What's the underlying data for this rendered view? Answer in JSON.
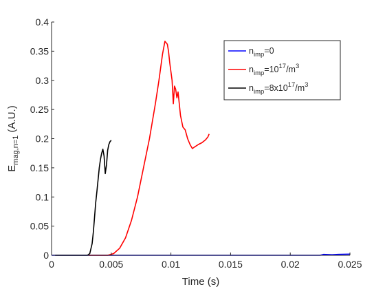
{
  "chart_data": {
    "type": "line",
    "xlabel": "Time (s)",
    "ylabel": {
      "base": "E",
      "sub": "mag,n=1",
      "suffix": " (A.U.)"
    },
    "xlim": [
      0,
      0.025
    ],
    "ylim": [
      0,
      0.4
    ],
    "xticks": [
      0,
      0.005,
      0.01,
      0.015,
      0.02,
      0.025
    ],
    "xtick_labels": [
      "0",
      "0.005",
      "0.01",
      "0.015",
      "0.02",
      "0.025"
    ],
    "yticks": [
      0,
      0.05,
      0.1,
      0.15,
      0.2,
      0.25,
      0.3,
      0.35,
      0.4
    ],
    "ytick_labels": [
      "0",
      "0.05",
      "0.1",
      "0.15",
      "0.2",
      "0.25",
      "0.3",
      "0.35",
      "0.4"
    ],
    "grid": false,
    "legend_position": "top-right",
    "series": [
      {
        "name": "n_imp=0",
        "legend": {
          "base": "n",
          "sub": "imp",
          "rest": "=0"
        },
        "color": "#0000ff",
        "points": [
          [
            0.0,
            0.0
          ],
          [
            0.005,
            0.0
          ],
          [
            0.01,
            0.0
          ],
          [
            0.015,
            0.0
          ],
          [
            0.02,
            0.0
          ],
          [
            0.0225,
            0.0
          ],
          [
            0.0228,
            0.0015
          ],
          [
            0.0235,
            0.001
          ],
          [
            0.024,
            0.0015
          ],
          [
            0.025,
            0.002
          ]
        ]
      },
      {
        "name": "n_imp=10^17/m^3",
        "legend": {
          "base": "n",
          "sub": "imp",
          "mid": "=10",
          "sup1": "17",
          "mid2": "/m",
          "sup2": "3"
        },
        "color": "#ff0000",
        "points": [
          [
            0.0031,
            0.0
          ],
          [
            0.0047,
            0.0
          ],
          [
            0.0052,
            0.003
          ],
          [
            0.0057,
            0.012
          ],
          [
            0.0062,
            0.03
          ],
          [
            0.0067,
            0.06
          ],
          [
            0.0072,
            0.1
          ],
          [
            0.0077,
            0.15
          ],
          [
            0.0082,
            0.2
          ],
          [
            0.0087,
            0.26
          ],
          [
            0.009,
            0.3
          ],
          [
            0.0093,
            0.345
          ],
          [
            0.0095,
            0.367
          ],
          [
            0.0097,
            0.362
          ],
          [
            0.0098,
            0.35
          ],
          [
            0.0099,
            0.33
          ],
          [
            0.0101,
            0.3
          ],
          [
            0.0102,
            0.26
          ],
          [
            0.0103,
            0.29
          ],
          [
            0.0104,
            0.285
          ],
          [
            0.0105,
            0.27
          ],
          [
            0.0106,
            0.28
          ],
          [
            0.0108,
            0.24
          ],
          [
            0.011,
            0.22
          ],
          [
            0.0112,
            0.215
          ],
          [
            0.0114,
            0.2
          ],
          [
            0.0116,
            0.19
          ],
          [
            0.0118,
            0.183
          ],
          [
            0.012,
            0.186
          ],
          [
            0.0123,
            0.19
          ],
          [
            0.0126,
            0.193
          ],
          [
            0.0129,
            0.198
          ],
          [
            0.0131,
            0.203
          ],
          [
            0.0132,
            0.208
          ]
        ]
      },
      {
        "name": "n_imp=8x10^17/m^3",
        "legend": {
          "base": "n",
          "sub": "imp",
          "mid": "=8x10",
          "sup1": "17",
          "mid2": "/m",
          "sup2": "3"
        },
        "color": "#000000",
        "points": [
          [
            0.0003,
            0.0
          ],
          [
            0.003,
            0.0
          ],
          [
            0.0032,
            0.003
          ],
          [
            0.0034,
            0.02
          ],
          [
            0.0035,
            0.04
          ],
          [
            0.0036,
            0.065
          ],
          [
            0.0037,
            0.09
          ],
          [
            0.0038,
            0.11
          ],
          [
            0.0039,
            0.13
          ],
          [
            0.004,
            0.15
          ],
          [
            0.0041,
            0.165
          ],
          [
            0.0042,
            0.175
          ],
          [
            0.0043,
            0.182
          ],
          [
            0.0044,
            0.17
          ],
          [
            0.0045,
            0.14
          ],
          [
            0.0046,
            0.155
          ],
          [
            0.0047,
            0.18
          ],
          [
            0.0048,
            0.19
          ],
          [
            0.0049,
            0.195
          ],
          [
            0.005,
            0.197
          ]
        ]
      }
    ]
  }
}
